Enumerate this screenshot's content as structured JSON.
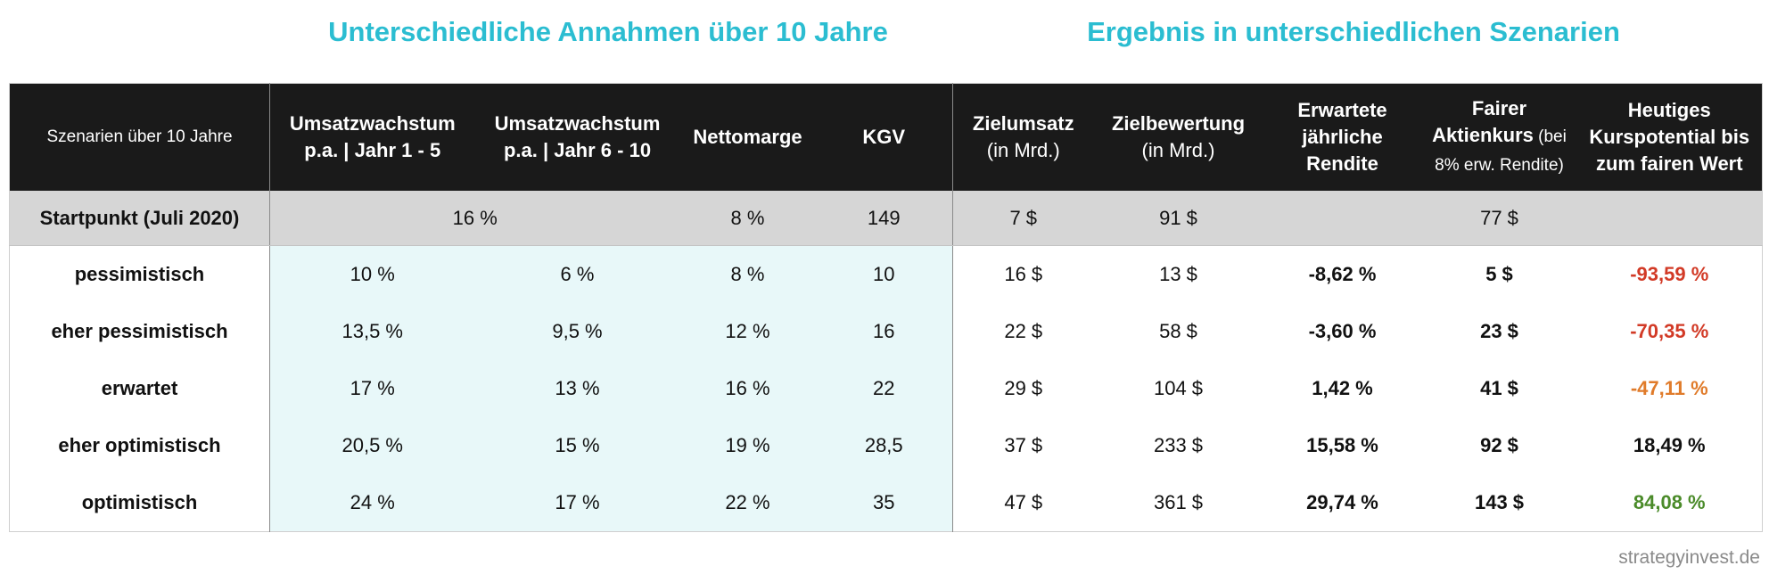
{
  "titles": {
    "assumptions": "Unterschiedliche Annahmen über 10 Jahre",
    "results": "Ergebnis in unterschiedlichen Szenarien"
  },
  "header": {
    "scenario": "Szenarien über 10 Jahre",
    "growth1": [
      "Umsatzwachstum",
      "p.a. | Jahr 1 - 5"
    ],
    "growth2": [
      "Umsatzwachstum",
      "p.a. | Jahr 6 - 10"
    ],
    "margin": "Nettomarge",
    "pe": "KGV",
    "target_revenue": [
      "Zielumsatz",
      "(in Mrd.)"
    ],
    "target_valuation": [
      "Zielbewertung",
      "(in Mrd.)"
    ],
    "expected_return": [
      "Erwartete",
      "jährliche",
      "Rendite"
    ],
    "fair_price": [
      "Fairer",
      "Aktienkurs",
      " (bei",
      "8% erw. Rendite)"
    ],
    "potential": [
      "Heutiges",
      "Kurspotential bis",
      "zum fairen Wert"
    ]
  },
  "start": {
    "label": "Startpunkt (Juli 2020)",
    "growth": "16 %",
    "margin": "8 %",
    "pe": "149",
    "target_revenue": "7 $",
    "target_valuation": "91 $",
    "fair_price": "77 $"
  },
  "rows": [
    {
      "label": "pessimistisch",
      "g1": "10 %",
      "g2": "6 %",
      "margin": "8 %",
      "pe": "10",
      "rev": "16 $",
      "val": "13 $",
      "ret": "-8,62 %",
      "price": "5 $",
      "pot": "-93,59 %"
    },
    {
      "label": "eher pessimistisch",
      "g1": "13,5 %",
      "g2": "9,5 %",
      "margin": "12 %",
      "pe": "16",
      "rev": "22 $",
      "val": "58 $",
      "ret": "-3,60 %",
      "price": "23 $",
      "pot": "-70,35 %"
    },
    {
      "label": "erwartet",
      "g1": "17 %",
      "g2": "13 %",
      "margin": "16 %",
      "pe": "22",
      "rev": "29 $",
      "val": "104 $",
      "ret": "1,42 %",
      "price": "41 $",
      "pot": "-47,11 %"
    },
    {
      "label": "eher optimistisch",
      "g1": "20,5 %",
      "g2": "15 %",
      "margin": "19 %",
      "pe": "28,5",
      "rev": "37 $",
      "val": "233 $",
      "ret": "15,58 %",
      "price": "92 $",
      "pot": "18,49 %"
    },
    {
      "label": "optimistisch",
      "g1": "24 %",
      "g2": "17 %",
      "margin": "22 %",
      "pe": "35",
      "rev": "47 $",
      "val": "361 $",
      "ret": "29,74 %",
      "price": "143 $",
      "pot": "84,08 %"
    }
  ],
  "colors": {
    "title": "#2bbdd1",
    "header_bg": "#1a1a1a",
    "start_bg": "#d6d6d6",
    "assumption_bg": "#e8f8f9",
    "negative_strong": "#d23a26",
    "negative_mild": "#e07b2a",
    "positive_strong": "#4b8b2a"
  },
  "watermark": "strategyinvest.de"
}
